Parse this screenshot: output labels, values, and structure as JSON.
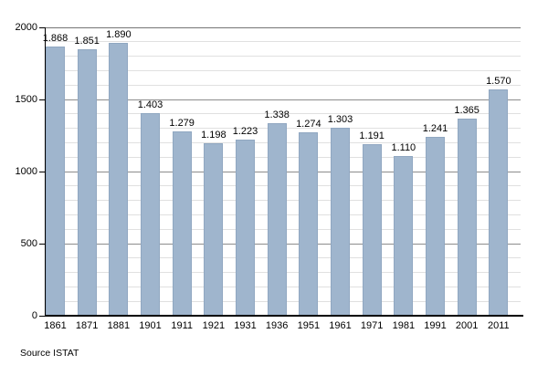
{
  "chart_data": {
    "type": "bar",
    "title": "",
    "categories": [
      "1861",
      "1871",
      "1881",
      "1901",
      "1911",
      "1921",
      "1931",
      "1936",
      "1951",
      "1961",
      "1971",
      "1981",
      "1991",
      "2001",
      "2011"
    ],
    "values": [
      1868,
      1851,
      1890,
      1403,
      1279,
      1198,
      1223,
      1338,
      1274,
      1303,
      1191,
      1110,
      1241,
      1365,
      1570
    ],
    "value_labels": [
      "1.868",
      "1.851",
      "1.890",
      "1.403",
      "1.279",
      "1.198",
      "1.223",
      "1.338",
      "1.274",
      "1.303",
      "1.191",
      "1.110",
      "1.241",
      "1.365",
      "1.570"
    ],
    "xlabel": "",
    "ylabel": "",
    "ylim": [
      0,
      2000
    ],
    "y_major_ticks": [
      0,
      500,
      1000,
      1500,
      2000
    ],
    "y_major_tick_labels": [
      "0",
      "500",
      "1000",
      "1500",
      "2000"
    ],
    "y_minor_step": 100,
    "grid": "on",
    "legend": "none",
    "source_note": "Source ISTAT",
    "colors": {
      "bar_fill": "#9fb5cd",
      "grid_major": "#8c8c8c",
      "grid_minor": "#e0e0e0",
      "grid_top": "#757575",
      "axis": "#000000",
      "text": "#000000",
      "background": "#ffffff"
    }
  }
}
